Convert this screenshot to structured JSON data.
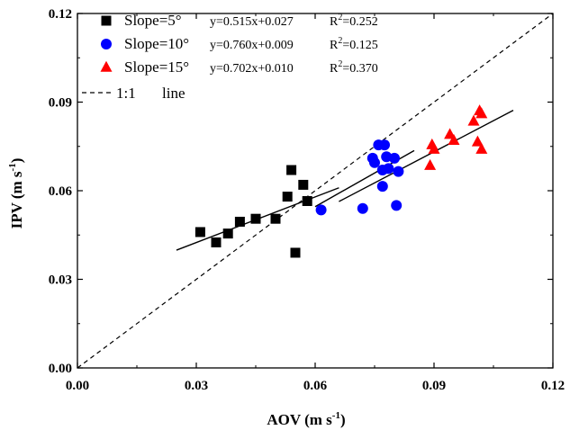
{
  "chart_data": {
    "type": "scatter",
    "xlabel": "AOV (m s",
    "xlabel_sup": "-1",
    "xlabel_end": ")",
    "ylabel": "IPV (m s",
    "ylabel_sup": "-1",
    "ylabel_end": ")",
    "xlim": [
      0,
      0.12
    ],
    "ylim": [
      0,
      0.12
    ],
    "xticks": [
      "0.00",
      "0.03",
      "0.06",
      "0.09",
      "0.12"
    ],
    "yticks": [
      "0.00",
      "0.03",
      "0.06",
      "0.09",
      "0.12"
    ],
    "legend_position": "top-left",
    "series": [
      {
        "name": "Slope=5°",
        "equation": "y=0.515x+0.027",
        "r2_label": "R",
        "r2_sup": "2",
        "r2_value": "=0.252",
        "marker": "square",
        "color": "#000000",
        "x": [
          0.031,
          0.035,
          0.038,
          0.041,
          0.045,
          0.05,
          0.053,
          0.054,
          0.055,
          0.057,
          0.058
        ],
        "y": [
          0.046,
          0.0425,
          0.0455,
          0.0495,
          0.0505,
          0.0505,
          0.058,
          0.067,
          0.039,
          0.062,
          0.0565
        ],
        "fit": {
          "slope": 0.515,
          "intercept": 0.027,
          "x_range": [
            0.025,
            0.066
          ]
        }
      },
      {
        "name": "Slope=10°",
        "equation": "y=0.760x+0.009",
        "r2_label": "R",
        "r2_sup": "2",
        "r2_value": "=0.125",
        "marker": "circle",
        "color": "#0000ff",
        "x": [
          0.0615,
          0.072,
          0.0745,
          0.075,
          0.076,
          0.077,
          0.0775,
          0.078,
          0.077,
          0.0785,
          0.08,
          0.0805,
          0.081
        ],
        "y": [
          0.0535,
          0.054,
          0.071,
          0.0695,
          0.0755,
          0.0615,
          0.0755,
          0.0715,
          0.067,
          0.0675,
          0.071,
          0.055,
          0.0665
        ],
        "fit": {
          "slope": 0.76,
          "intercept": 0.009,
          "x_range": [
            0.06,
            0.085
          ]
        }
      },
      {
        "name": "Slope=15°",
        "equation": "y=0.702x+0.010",
        "r2_label": "R",
        "r2_sup": "2",
        "r2_value": "=0.370",
        "marker": "triangle",
        "color": "#ff0000",
        "x": [
          0.089,
          0.0895,
          0.09,
          0.094,
          0.095,
          0.1,
          0.101,
          0.1015,
          0.102,
          0.102
        ],
        "y": [
          0.0685,
          0.0755,
          0.074,
          0.079,
          0.077,
          0.0835,
          0.0765,
          0.087,
          0.074,
          0.086
        ],
        "fit": {
          "slope": 0.702,
          "intercept": 0.01,
          "x_range": [
            0.066,
            0.11
          ]
        }
      }
    ],
    "reference_line": {
      "label_left": "1:1",
      "label_right": "line",
      "slope": 1,
      "intercept": 0
    }
  }
}
